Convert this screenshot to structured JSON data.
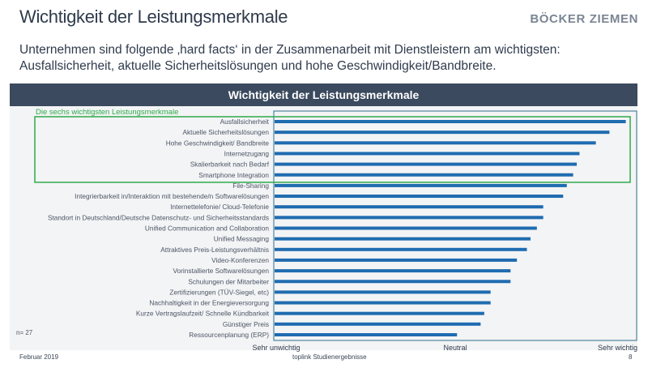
{
  "header": {
    "title": "Wichtigkeit der Leistungsmerkmale",
    "logo": "BÖCKER ZIEMEN"
  },
  "subtitle": [
    "Unternehmen sind folgende ‚hard facts‘ in der Zusammenarbeit mit Dienstleistern am wichtigsten:",
    "Ausfallsicherheit, aktuelle Sicherheitslösungen und hohe Geschwindigkeit/Bandbreite."
  ],
  "footer": {
    "date": "Februar 2019",
    "source": "toplink Studienergebnisse",
    "page": "8"
  },
  "chart_data": {
    "type": "bar",
    "orientation": "horizontal",
    "title": "Wichtigkeit der Leistungsmerkmale",
    "highlight_label": "Die sechs wichtigsten Leistungsmerkmale",
    "highlight_count": 6,
    "sample_note": "n= 27",
    "xlim": [
      1,
      5
    ],
    "x_tick_labels": [
      {
        "value": 1,
        "label": "Sehr unwichtig"
      },
      {
        "value": 3,
        "label": "Neutral"
      },
      {
        "value": 5,
        "label": "Sehr wichtig"
      }
    ],
    "bar_color": "#1f6cb0",
    "highlight_color": "#2eaa4a",
    "grid": false,
    "categories": [
      "Ausfallsicherheit",
      "Aktuelle Sicherheitslösungen",
      "Hohe Geschwindigkeit/ Bandbreite",
      "Internetzugang",
      "Skalierbarkeit nach Bedarf",
      "Smartphone Integration",
      "File-Sharing",
      "Integrierbarkeit in/Interaktion mit bestehende/n Softwarelösungen",
      "Internettelefonie/ Cloud-Telefonie",
      "Standort in Deutschland/Deutsche Datenschutz- und Sicherheitsstandards",
      "Unified Communication and Collaboration",
      "Unified Messaging",
      "Attraktives Preis-Leistungsverhältnis",
      "Video-Konferenzen",
      "Vorinstallierte Softwarelösungen",
      "Schulungen der Mitarbeiter",
      "Zertifizierungen (TÜV-Siegel, etc)",
      "Nachhaltigkeit in der Energieversorgung",
      "Kurze Vertragslaufzeit/ Schnelle Kündbarkeit",
      "Günstiger Preis",
      "Ressourcenplanung (ERP)"
    ],
    "values": [
      4.88,
      4.7,
      4.55,
      4.37,
      4.34,
      4.3,
      4.23,
      4.19,
      3.97,
      3.97,
      3.9,
      3.83,
      3.79,
      3.68,
      3.61,
      3.61,
      3.39,
      3.39,
      3.32,
      3.28,
      3.02
    ]
  }
}
